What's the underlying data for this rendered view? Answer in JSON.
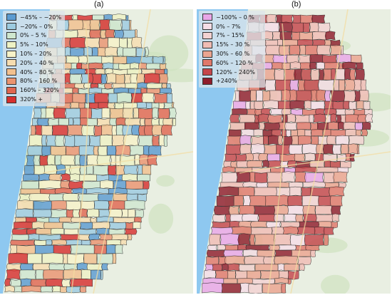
{
  "panels": [
    {
      "label": "(a)",
      "legend": [
        {
          "text": "−45% – −20%",
          "color": "#5b9bd1"
        },
        {
          "text": "−20% – 0%",
          "color": "#9ccbe0"
        },
        {
          "text": "0% – 5 %",
          "color": "#cfe7cf"
        },
        {
          "text": "5% – 10%",
          "color": "#eef2c4"
        },
        {
          "text": "10% – 20%",
          "color": "#f7f2c8"
        },
        {
          "text": "20% – 40 %",
          "color": "#f6ddb0"
        },
        {
          "text": "40% – 80 %",
          "color": "#f2c08e"
        },
        {
          "text": "80% – 160 %",
          "color": "#ea9470"
        },
        {
          "text": "160% – 320%",
          "color": "#e06650"
        },
        {
          "text": "320% +",
          "color": "#d7302e"
        }
      ]
    },
    {
      "label": "(b)",
      "legend": [
        {
          "text": "−100% – 0 %",
          "color": "#e9a6e8"
        },
        {
          "text": "0% – 7%",
          "color": "#f5dde6"
        },
        {
          "text": "7% – 15%",
          "color": "#f3d2d2"
        },
        {
          "text": "15% – 30 %",
          "color": "#f0bcb4"
        },
        {
          "text": "30% – 60 %",
          "color": "#eba48f"
        },
        {
          "text": "60% – 120 %",
          "color": "#e0786a"
        },
        {
          "text": "120% – 240%",
          "color": "#c5464b"
        },
        {
          "text": "+240%",
          "color": "#8f1d2c"
        }
      ]
    }
  ],
  "colors": {
    "sea": "#8ec8f0",
    "land": "#e9efe2",
    "park": "#cfe3c0",
    "road": "#f4dca0",
    "boundary": "#2a2a2a"
  }
}
